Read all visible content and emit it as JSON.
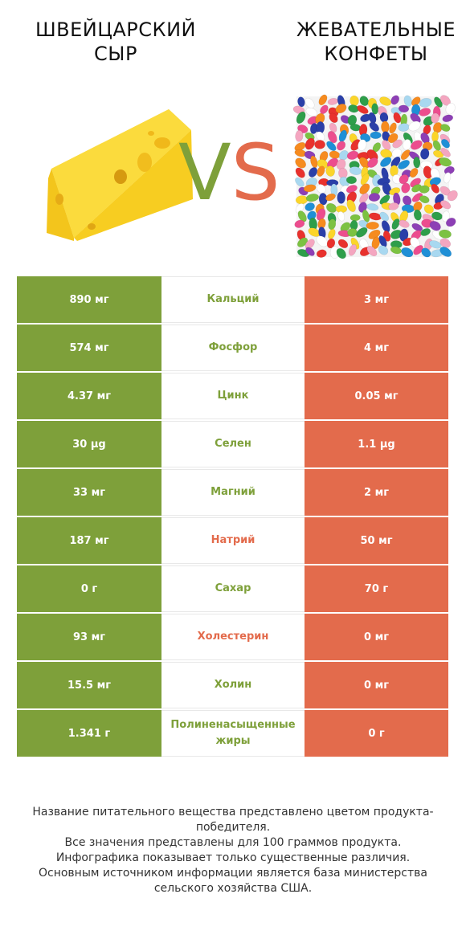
{
  "header": {
    "left_title": "ШВЕЙЦАРСКИЙ СЫР",
    "right_title": "ЖЕВАТЕЛЬНЫЕ КОНФЕТЫ",
    "vs_v": "V",
    "vs_s": "S"
  },
  "colors": {
    "winner_left": "#7ea03a",
    "winner_right": "#e36b4c"
  },
  "rows": [
    {
      "left": "890 мг",
      "name": "Кальций",
      "right": "3 мг",
      "winner": "left"
    },
    {
      "left": "574 мг",
      "name": "Фосфор",
      "right": "4 мг",
      "winner": "left"
    },
    {
      "left": "4.37 мг",
      "name": "Цинк",
      "right": "0.05 мг",
      "winner": "left"
    },
    {
      "left": "30 µg",
      "name": "Селен",
      "right": "1.1 µg",
      "winner": "left"
    },
    {
      "left": "33 мг",
      "name": "Магний",
      "right": "2 мг",
      "winner": "left"
    },
    {
      "left": "187 мг",
      "name": "Натрий",
      "right": "50 мг",
      "winner": "right"
    },
    {
      "left": "0 г",
      "name": "Сахар",
      "right": "70 г",
      "winner": "left"
    },
    {
      "left": "93 мг",
      "name": "Холестерин",
      "right": "0 мг",
      "winner": "right"
    },
    {
      "left": "15.5 мг",
      "name": "Холин",
      "right": "0 мг",
      "winner": "left"
    },
    {
      "left": "1.341 г",
      "name": "Полиненасыщенные жиры",
      "right": "0 г",
      "winner": "left"
    }
  ],
  "footer": {
    "line1": "Название питательного вещества представлено цветом продукта-победителя.",
    "line2": "Все значения представлены для 100 граммов продукта.",
    "line3": "Инфографика показывает только существенные различия.",
    "line4": "Основным источником информации является база министерства сельского хозяйства США."
  }
}
